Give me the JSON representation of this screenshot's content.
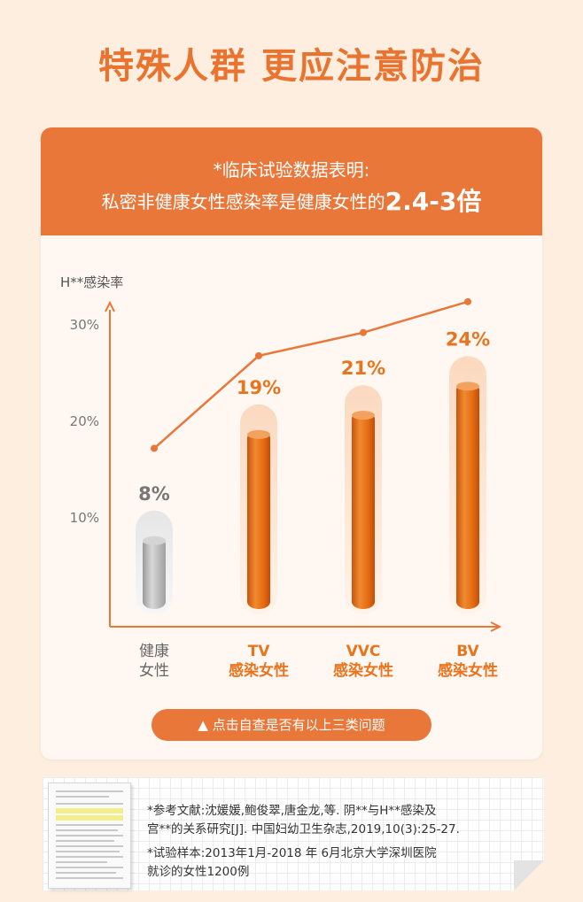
{
  "title": "特殊人群 更应注意防治",
  "header": {
    "line1": "*临床试验数据表明:",
    "line2_prefix": "私密非健康女性感染率是健康女性的",
    "line2_highlight": "2.4-3倍"
  },
  "colors": {
    "accent": "#e9773a",
    "title": "#e9732f",
    "bar_orange": "#e8741e",
    "bar_gray": "#b8b8b8",
    "line": "#e9773a"
  },
  "chart_data": {
    "type": "bar",
    "ylabel": "H**感染率",
    "yticks": [
      10,
      20,
      30
    ],
    "ytick_labels": [
      "10%",
      "20%",
      "30%"
    ],
    "ylim": [
      0,
      36
    ],
    "categories": [
      {
        "line1": "健康",
        "line2": "女性"
      },
      {
        "line1": "TV",
        "line2": "感染女性"
      },
      {
        "line1": "VVC",
        "line2": "感染女性"
      },
      {
        "line1": "BV",
        "line2": "感染女性"
      }
    ],
    "values": [
      8,
      19,
      21,
      24
    ],
    "value_labels": [
      "8%",
      "19%",
      "21%",
      "24%"
    ],
    "line_values": [
      17.2,
      26.8,
      29.2,
      32.4
    ]
  },
  "cta": {
    "label": "▲ 点击自查是否有以上三类问题"
  },
  "reference": {
    "line1": "*参考文献:沈媛媛,鲍俊翠,唐金龙,等. 阴**与H**感染及",
    "line2": "宫**的关系研究[J]. 中国妇幼卫生杂志,2019,10(3):25-27.",
    "line3": "*试验样本:2013年1月-2018 年 6月北京大学深圳医院",
    "line4": "就诊的女性1200例"
  }
}
